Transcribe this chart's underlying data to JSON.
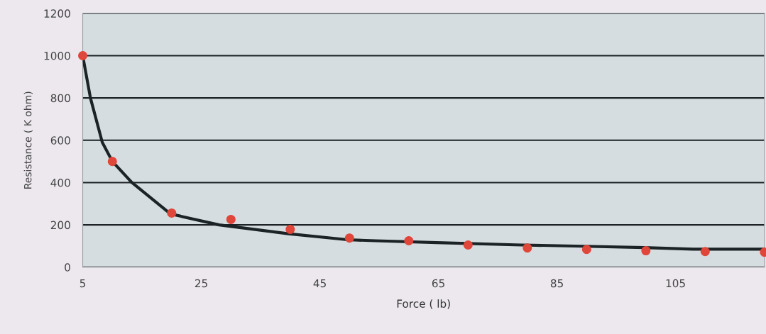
{
  "chart_data": {
    "type": "scatter",
    "xlabel": "Force ( lb)",
    "ylabel": "Resistance ( K ohm)",
    "xlim": [
      5,
      120
    ],
    "ylim": [
      0,
      1200
    ],
    "xticks": [
      5,
      25,
      45,
      65,
      85,
      105
    ],
    "yticks": [
      0,
      200,
      400,
      600,
      800,
      1000,
      1200
    ],
    "grid": "y",
    "series": [
      {
        "type": "line",
        "color": "#1c2326",
        "marker": "none",
        "line_style": "solid",
        "x": [
          5,
          6.3,
          8.3,
          10,
          13.3,
          19.8,
          28,
          39.7,
          49.6,
          54.4,
          64.7,
          79,
          89.5,
          99.7,
          108,
          118.8,
          120
        ],
        "values": [
          1000,
          800,
          590,
          500,
          400,
          252,
          200,
          158,
          130,
          125,
          116,
          105,
          99,
          93,
          85,
          85,
          85
        ]
      },
      {
        "color": "#e0463a",
        "marker": "circle",
        "x": [
          5,
          10,
          20,
          30,
          40,
          50,
          60,
          70,
          80,
          90,
          100,
          110,
          120
        ],
        "values": [
          1000,
          500,
          256,
          226,
          179,
          138,
          125,
          105,
          91,
          84,
          78,
          74,
          71
        ]
      }
    ]
  }
}
